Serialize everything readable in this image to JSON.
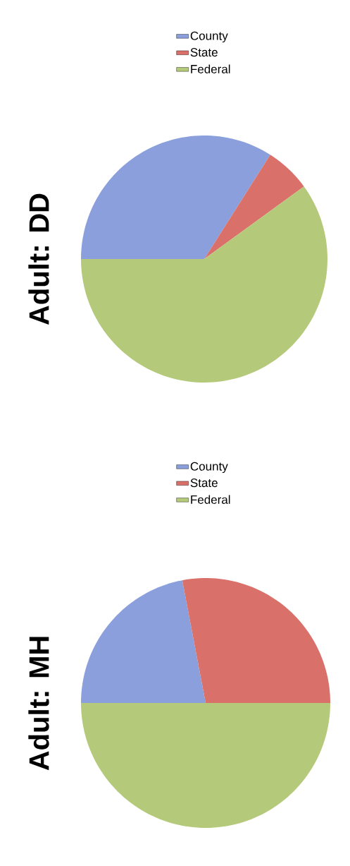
{
  "chart_data": [
    {
      "type": "pie",
      "title": "Adult: DD",
      "categories": [
        "County",
        "State",
        "Federal"
      ],
      "values": [
        34,
        6,
        60
      ],
      "colors": [
        "#8a9fdb",
        "#d9706a",
        "#b5c97a"
      ],
      "legend": "right"
    },
    {
      "type": "pie",
      "title": "Adult: MH",
      "categories": [
        "County",
        "State",
        "Federal"
      ],
      "values": [
        22,
        28,
        50
      ],
      "colors": [
        "#8a9fdb",
        "#d9706a",
        "#b5c97a"
      ],
      "legend": "right"
    }
  ]
}
